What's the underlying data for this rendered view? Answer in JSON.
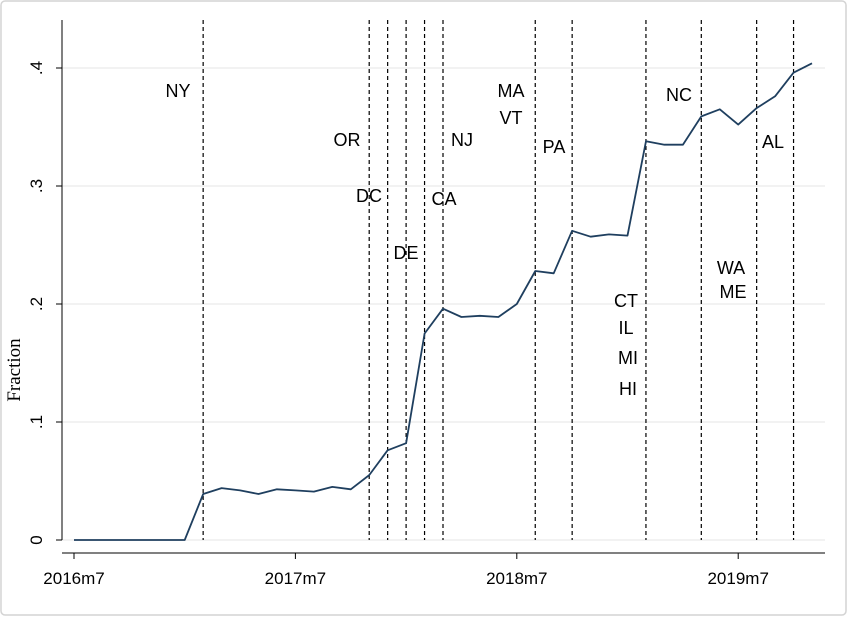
{
  "chart_data": {
    "type": "line",
    "title": "",
    "xlabel": "",
    "ylabel": "Fraction",
    "ylim": [
      0,
      0.4
    ],
    "y_ticks": [
      {
        "value": 0,
        "label": "0"
      },
      {
        "value": 0.1,
        "label": ".1"
      },
      {
        "value": 0.2,
        "label": ".2"
      },
      {
        "value": 0.3,
        "label": ".3"
      },
      {
        "value": 0.4,
        "label": ".4"
      }
    ],
    "x_ticks": [
      {
        "value": "2016-07",
        "label": "2016m7"
      },
      {
        "value": "2017-07",
        "label": "2017m7"
      },
      {
        "value": "2018-07",
        "label": "2018m7"
      },
      {
        "value": "2019-07",
        "label": "2019m7"
      }
    ],
    "grid": true,
    "line_color": "#1f3f5f",
    "series": [
      {
        "x": [
          "2016-07",
          "2016-08",
          "2016-09",
          "2016-10",
          "2016-11",
          "2016-12",
          "2017-01",
          "2017-02",
          "2017-03",
          "2017-04",
          "2017-05",
          "2017-06",
          "2017-07",
          "2017-08",
          "2017-09",
          "2017-10",
          "2017-11",
          "2017-12",
          "2018-01",
          "2018-02",
          "2018-03",
          "2018-04",
          "2018-05",
          "2018-06",
          "2018-07",
          "2018-08",
          "2018-09",
          "2018-10",
          "2018-11",
          "2018-12",
          "2019-01",
          "2019-02",
          "2019-03",
          "2019-04",
          "2019-05",
          "2019-06",
          "2019-07",
          "2019-08",
          "2019-09",
          "2019-10",
          "2019-11"
        ],
        "y": [
          0,
          0,
          0,
          0,
          0,
          0,
          0,
          0.039,
          0.044,
          0.042,
          0.039,
          0.043,
          0.042,
          0.041,
          0.045,
          0.043,
          0.055,
          0.076,
          0.082,
          0.175,
          0.196,
          0.189,
          0.19,
          0.189,
          0.2,
          0.228,
          0.226,
          0.262,
          0.257,
          0.259,
          0.258,
          0.338,
          0.335,
          0.335,
          0.359,
          0.365,
          0.352,
          0.366,
          0.376,
          0.396,
          0.404
        ]
      }
    ],
    "events": [
      {
        "x": "2017-02",
        "labels": [
          "NY"
        ]
      },
      {
        "x": "2017-11",
        "labels": [
          "OR"
        ]
      },
      {
        "x": "2017-12",
        "labels": [
          "DC"
        ]
      },
      {
        "x": "2018-01",
        "labels": [
          "DE"
        ]
      },
      {
        "x": "2018-02",
        "labels": [
          "CA"
        ]
      },
      {
        "x": "2018-03",
        "labels": [
          "NJ"
        ]
      },
      {
        "x": "2018-08",
        "labels": [
          "MA",
          "VT"
        ]
      },
      {
        "x": "2018-10",
        "labels": [
          "PA"
        ]
      },
      {
        "x": "2019-02",
        "labels": [
          "CT",
          "IL",
          "MI",
          "HI"
        ]
      },
      {
        "x": "2019-05",
        "labels": [
          "NC"
        ]
      },
      {
        "x": "2019-08",
        "labels": [
          "WA",
          "ME"
        ]
      },
      {
        "x": "2019-10",
        "labels": [
          "AL"
        ]
      }
    ]
  }
}
